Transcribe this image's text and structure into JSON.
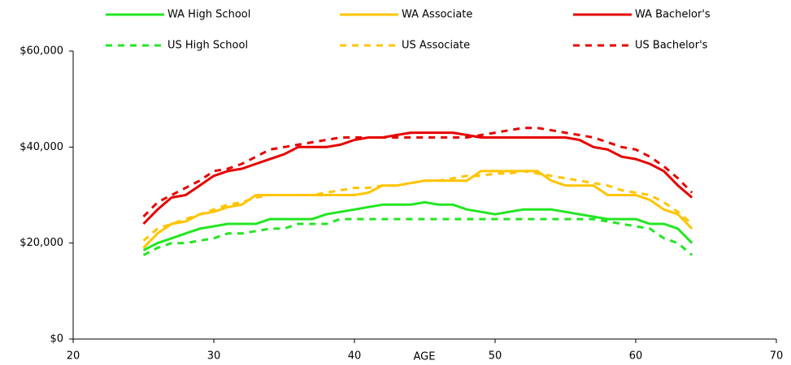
{
  "chart_data": {
    "type": "line",
    "x_label": "AGE",
    "x": [
      25,
      26,
      27,
      28,
      29,
      30,
      31,
      32,
      33,
      34,
      35,
      36,
      37,
      38,
      39,
      40,
      41,
      42,
      43,
      44,
      45,
      46,
      47,
      48,
      49,
      50,
      51,
      52,
      53,
      54,
      55,
      56,
      57,
      58,
      59,
      60,
      61,
      62,
      63,
      64
    ],
    "series": [
      {
        "name": "WA High School",
        "color": "#22e622",
        "dashed": false,
        "values": [
          18500,
          20000,
          21000,
          22000,
          23000,
          23500,
          24000,
          24000,
          24000,
          25000,
          25000,
          25000,
          25000,
          26000,
          26500,
          27000,
          27500,
          28000,
          28000,
          28000,
          28500,
          28000,
          28000,
          27000,
          26500,
          26000,
          26500,
          27000,
          27000,
          27000,
          26500,
          26000,
          25500,
          25000,
          25000,
          25000,
          24000,
          24000,
          23000,
          20000
        ]
      },
      {
        "name": "WA Associate",
        "color": "#ffc400",
        "dashed": false,
        "values": [
          19000,
          22000,
          24000,
          24500,
          26000,
          26500,
          27500,
          28000,
          30000,
          30000,
          30000,
          30000,
          30000,
          30000,
          30000,
          30000,
          30500,
          32000,
          32000,
          32500,
          33000,
          33000,
          33000,
          33000,
          35000,
          35000,
          35000,
          35000,
          35000,
          33000,
          32000,
          32000,
          32000,
          30000,
          30000,
          30000,
          29000,
          27000,
          26000,
          23000
        ]
      },
      {
        "name": "WA Bachelor's",
        "color": "#e60000",
        "dashed": false,
        "values": [
          24000,
          27000,
          29500,
          30000,
          32000,
          34000,
          35000,
          35500,
          36500,
          37500,
          38500,
          40000,
          40000,
          40000,
          40500,
          41500,
          42000,
          42000,
          42500,
          43000,
          43000,
          43000,
          43000,
          42500,
          42000,
          42000,
          42000,
          42000,
          42000,
          42000,
          42000,
          41500,
          40000,
          39500,
          38000,
          37500,
          36500,
          35000,
          32000,
          29500
        ]
      },
      {
        "name": "US High School",
        "color": "#22e622",
        "dashed": true,
        "values": [
          17500,
          19000,
          20000,
          20000,
          20500,
          21000,
          22000,
          22000,
          22500,
          23000,
          23000,
          24000,
          24000,
          24000,
          25000,
          25000,
          25000,
          25000,
          25000,
          25000,
          25000,
          25000,
          25000,
          25000,
          25000,
          25000,
          25000,
          25000,
          25000,
          25000,
          25000,
          25000,
          25000,
          24500,
          24000,
          23500,
          23000,
          21000,
          20000,
          17500
        ]
      },
      {
        "name": "US Associate",
        "color": "#ffc400",
        "dashed": true,
        "values": [
          20500,
          23000,
          24000,
          25000,
          26000,
          27000,
          28000,
          28500,
          29500,
          30000,
          30000,
          30000,
          30000,
          30500,
          31000,
          31500,
          31500,
          32000,
          32000,
          32500,
          33000,
          33000,
          33500,
          34000,
          34000,
          34500,
          34500,
          35000,
          34500,
          34000,
          33500,
          33000,
          32500,
          32000,
          31000,
          30500,
          30000,
          28500,
          26500,
          24000
        ]
      },
      {
        "name": "US Bachelor's",
        "color": "#e60000",
        "dashed": true,
        "values": [
          25500,
          28500,
          30000,
          31500,
          33000,
          35000,
          35500,
          36500,
          38000,
          39500,
          40000,
          40500,
          41000,
          41500,
          42000,
          42000,
          42000,
          42000,
          42000,
          42000,
          42000,
          42000,
          42000,
          42000,
          42500,
          43000,
          43500,
          44000,
          44000,
          43500,
          43000,
          42500,
          42000,
          41000,
          40000,
          39500,
          38000,
          36000,
          33500,
          30500
        ]
      }
    ],
    "xlim": [
      20,
      70
    ],
    "xticks": [
      20,
      30,
      40,
      50,
      60,
      70
    ],
    "ylim": [
      0,
      60000
    ],
    "yticks": [
      {
        "value": 0,
        "label": "$0"
      },
      {
        "value": 20000,
        "label": "$20,000"
      },
      {
        "value": 40000,
        "label": "$40,000"
      },
      {
        "value": 60000,
        "label": "$60,000"
      }
    ]
  }
}
